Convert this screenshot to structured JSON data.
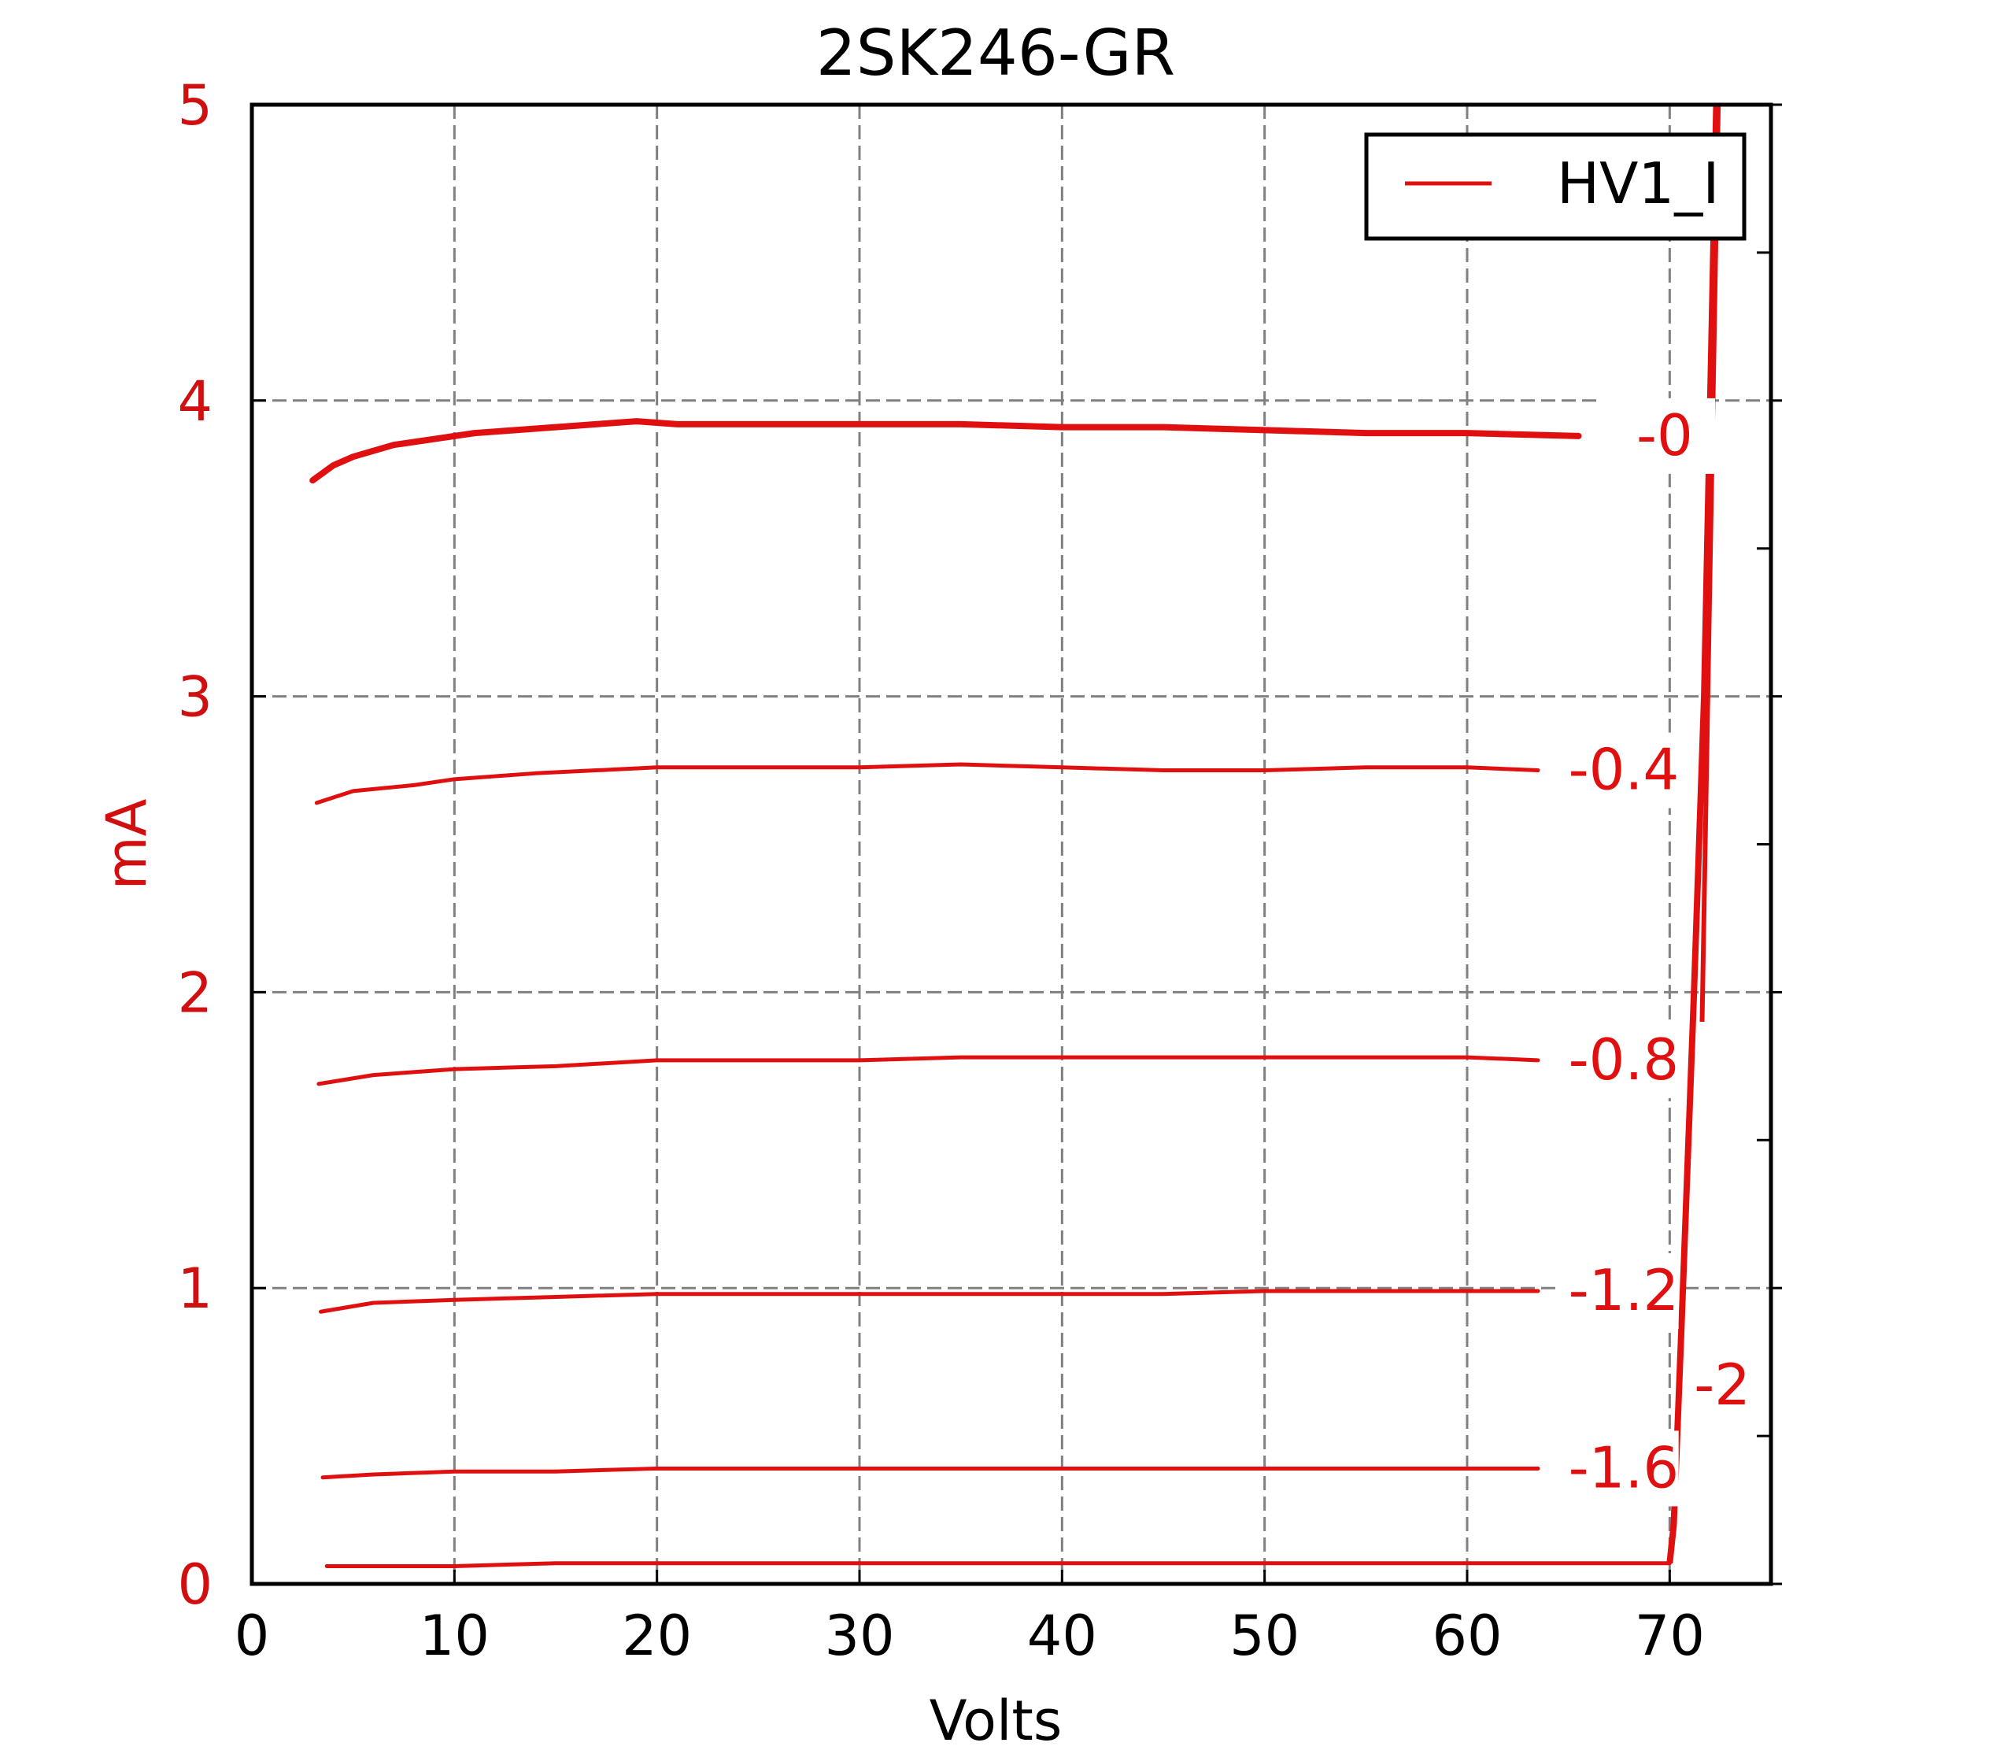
{
  "chart_data": {
    "type": "line",
    "title": "2SK246-GR",
    "xlabel": "Volts",
    "ylabel": "mA",
    "xlim": [
      0,
      75
    ],
    "ylim": [
      0,
      5
    ],
    "x_ticks": [
      "0",
      "10",
      "20",
      "30",
      "40",
      "50",
      "60",
      "70"
    ],
    "y_ticks": [
      "0",
      "1",
      "2",
      "3",
      "4",
      "5"
    ],
    "grid": true,
    "legend": {
      "position": "top-right",
      "entries": [
        "HV1_I"
      ]
    },
    "colors": {
      "series": "#e01010",
      "axis_labels": "#d01010",
      "grid": "#808080",
      "text": "#000000"
    },
    "curve_labels": [
      "-0",
      "-0.4",
      "-0.8",
      "-1.2",
      "-1.6",
      "-2"
    ],
    "series": [
      {
        "vg_label": "-0",
        "x": [
          3,
          4,
          5,
          7,
          9,
          11,
          13,
          15,
          17,
          19,
          21,
          25,
          30,
          35,
          40,
          45,
          50,
          55,
          60,
          65.5
        ],
        "y": [
          3.73,
          3.78,
          3.81,
          3.85,
          3.87,
          3.89,
          3.9,
          3.91,
          3.92,
          3.93,
          3.92,
          3.92,
          3.92,
          3.92,
          3.91,
          3.91,
          3.9,
          3.89,
          3.89,
          3.88
        ]
      },
      {
        "vg_label": "-0.4",
        "x": [
          3.2,
          5,
          8,
          10,
          12,
          14,
          17,
          20,
          25,
          30,
          35,
          40,
          45,
          50,
          55,
          60,
          63.5
        ],
        "y": [
          2.64,
          2.68,
          2.7,
          2.72,
          2.73,
          2.74,
          2.75,
          2.76,
          2.76,
          2.76,
          2.77,
          2.76,
          2.75,
          2.75,
          2.76,
          2.76,
          2.75
        ]
      },
      {
        "vg_label": "-0.8",
        "x": [
          3.3,
          6,
          10,
          15,
          20,
          25,
          30,
          35,
          40,
          45,
          50,
          55,
          60,
          63.5
        ],
        "y": [
          1.69,
          1.72,
          1.74,
          1.75,
          1.77,
          1.77,
          1.77,
          1.78,
          1.78,
          1.78,
          1.78,
          1.78,
          1.78,
          1.77
        ]
      },
      {
        "vg_label": "-1.2",
        "x": [
          3.4,
          6,
          10,
          15,
          20,
          25,
          30,
          35,
          40,
          45,
          50,
          55,
          60,
          63.5
        ],
        "y": [
          0.92,
          0.95,
          0.96,
          0.97,
          0.98,
          0.98,
          0.98,
          0.98,
          0.98,
          0.98,
          0.99,
          0.99,
          0.99,
          0.99
        ]
      },
      {
        "vg_label": "-1.6",
        "x": [
          3.5,
          6,
          10,
          15,
          20,
          25,
          30,
          35,
          40,
          45,
          50,
          55,
          60,
          63.5
        ],
        "y": [
          0.36,
          0.37,
          0.38,
          0.38,
          0.39,
          0.39,
          0.39,
          0.39,
          0.39,
          0.39,
          0.39,
          0.39,
          0.39,
          0.39
        ]
      },
      {
        "vg_label": "-2",
        "x": [
          3.7,
          6,
          10,
          15,
          20,
          25,
          30,
          35,
          40,
          45,
          50,
          55,
          60,
          65,
          70
        ],
        "y": [
          0.06,
          0.06,
          0.06,
          0.07,
          0.07,
          0.07,
          0.07,
          0.07,
          0.07,
          0.07,
          0.07,
          0.07,
          0.07,
          0.07,
          0.07
        ]
      }
    ],
    "breakdown": {
      "x": [
        70,
        70.2,
        70.6,
        71.2,
        71.7,
        72.0,
        72.3
      ],
      "y": [
        0.07,
        0.2,
        0.9,
        2.0,
        3.0,
        4.0,
        5.0
      ]
    }
  }
}
